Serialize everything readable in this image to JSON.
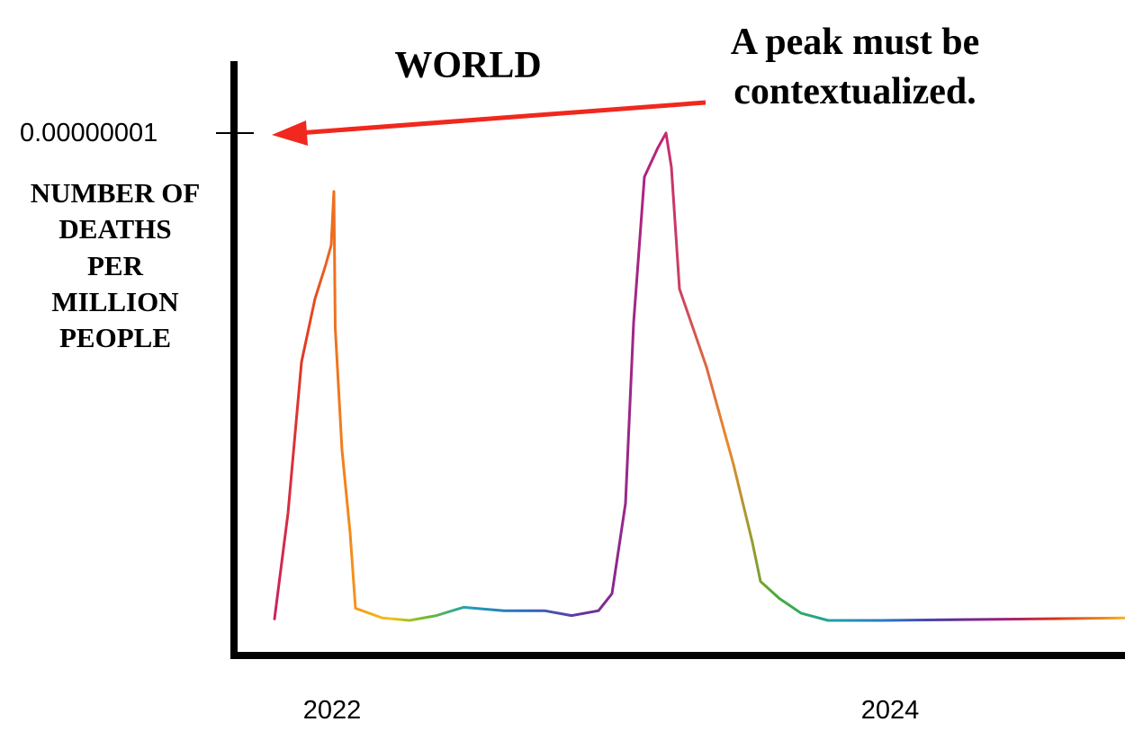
{
  "chart_data": {
    "type": "line",
    "title": "WORLD",
    "ylabel_lines": [
      "NUMBER OF",
      "DEATHS",
      "PER",
      "MILLION",
      "PEOPLE"
    ],
    "y_tick_label": "0.00000001",
    "ylim": [
      0,
      1e-08
    ],
    "x_tick_labels": [
      "2022",
      "2024"
    ],
    "xlim": [
      2021.7,
      2024.9
    ],
    "annotation_lines": [
      "A peak must be",
      "contextualized."
    ],
    "annotation_color": "#f0281e",
    "grid": false,
    "series": [
      {
        "color_style": "rainbow",
        "points": [
          [
            2021.75,
            3e-11
          ],
          [
            2021.8,
            2.2e-09
          ],
          [
            2021.85,
            5.3e-09
          ],
          [
            2021.9,
            6.6e-09
          ],
          [
            2021.94,
            7.3e-09
          ],
          [
            2021.96,
            7.7e-09
          ],
          [
            2021.97,
            8.8e-09
          ],
          [
            2021.975,
            6e-09
          ],
          [
            2022.0,
            3.5e-09
          ],
          [
            2022.03,
            1.8e-09
          ],
          [
            2022.05,
            2.5e-10
          ],
          [
            2022.15,
            5e-11
          ],
          [
            2022.25,
            0.0
          ],
          [
            2022.35,
            1e-10
          ],
          [
            2022.45,
            2.7e-10
          ],
          [
            2022.6,
            2e-10
          ],
          [
            2022.75,
            2e-10
          ],
          [
            2022.85,
            1e-10
          ],
          [
            2022.95,
            2e-10
          ],
          [
            2023.0,
            5.5e-10
          ],
          [
            2023.05,
            2.4e-09
          ],
          [
            2023.08,
            6.1e-09
          ],
          [
            2023.12,
            9.1e-09
          ],
          [
            2023.17,
            9.7e-09
          ],
          [
            2023.2,
            1e-08
          ],
          [
            2023.22,
            9.3e-09
          ],
          [
            2023.25,
            6.8e-09
          ],
          [
            2023.35,
            5.2e-09
          ],
          [
            2023.45,
            3.2e-09
          ],
          [
            2023.52,
            1.6e-09
          ],
          [
            2023.55,
            8e-10
          ],
          [
            2023.62,
            4.5e-10
          ],
          [
            2023.7,
            1.5e-10
          ],
          [
            2023.8,
            0.0
          ],
          [
            2024.0,
            0.0
          ],
          [
            2024.9,
            5e-11
          ]
        ]
      }
    ]
  }
}
